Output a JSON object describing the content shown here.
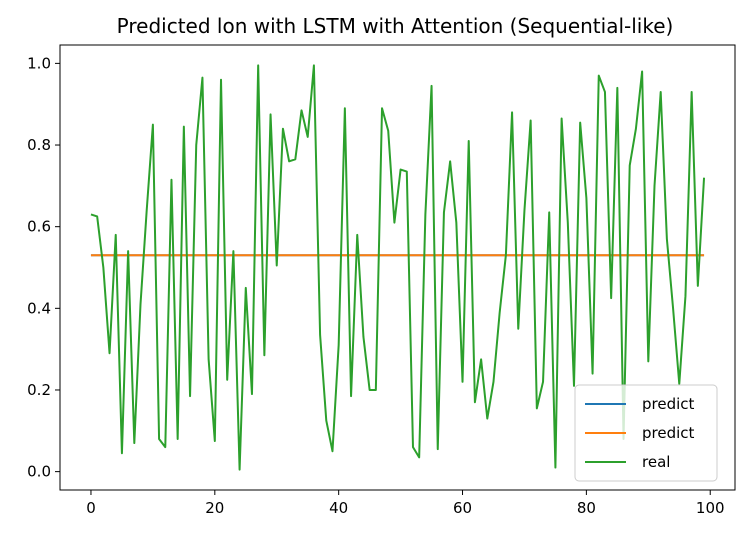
{
  "chart_data": {
    "type": "line",
    "title": "Predicted lon with LSTM with Attention (Sequential-like)",
    "xlabel": "",
    "ylabel": "",
    "xlim": [
      -5,
      104
    ],
    "ylim": [
      -0.045,
      1.045
    ],
    "xticks": [
      0,
      20,
      40,
      60,
      80,
      100
    ],
    "yticks": [
      0.0,
      0.2,
      0.4,
      0.6,
      0.8,
      1.0
    ],
    "xtick_labels": [
      "0",
      "20",
      "40",
      "60",
      "80",
      "100"
    ],
    "ytick_labels": [
      "0.0",
      "0.2",
      "0.4",
      "0.6",
      "0.8",
      "1.0"
    ],
    "grid": false,
    "legend_position": "lower-right",
    "series": [
      {
        "name": "predict",
        "color": "#1f77b4",
        "x_start": 0,
        "values": [
          0.53,
          0.53,
          0.53,
          0.53,
          0.53,
          0.53,
          0.53,
          0.53,
          0.53,
          0.53,
          0.53,
          0.53,
          0.53,
          0.53,
          0.53,
          0.53,
          0.53,
          0.53,
          0.53,
          0.53,
          0.53,
          0.53,
          0.53,
          0.53,
          0.53,
          0.53,
          0.53,
          0.53,
          0.53,
          0.53,
          0.53,
          0.53,
          0.53,
          0.53,
          0.53,
          0.53,
          0.53,
          0.53,
          0.53,
          0.53,
          0.53,
          0.53,
          0.53,
          0.53,
          0.53,
          0.53,
          0.53,
          0.53,
          0.53,
          0.53,
          0.53,
          0.53,
          0.53,
          0.53,
          0.53,
          0.53,
          0.53,
          0.53,
          0.53,
          0.53,
          0.53,
          0.53,
          0.53,
          0.53,
          0.53,
          0.53,
          0.53,
          0.53,
          0.53,
          0.53,
          0.53,
          0.53,
          0.53,
          0.53,
          0.53,
          0.53,
          0.53,
          0.53,
          0.53,
          0.53,
          0.53,
          0.53,
          0.53,
          0.53,
          0.53,
          0.53,
          0.53,
          0.53,
          0.53,
          0.53,
          0.53,
          0.53,
          0.53,
          0.53,
          0.53,
          0.53,
          0.53,
          0.53,
          0.53,
          0.53
        ]
      },
      {
        "name": "predict",
        "color": "#ff7f0e",
        "x_start": 0,
        "values": [
          0.53,
          0.53,
          0.53,
          0.53,
          0.53,
          0.53,
          0.53,
          0.53,
          0.53,
          0.53,
          0.53,
          0.53,
          0.53,
          0.53,
          0.53,
          0.53,
          0.53,
          0.53,
          0.53,
          0.53,
          0.53,
          0.53,
          0.53,
          0.53,
          0.53,
          0.53,
          0.53,
          0.53,
          0.53,
          0.53,
          0.53,
          0.53,
          0.53,
          0.53,
          0.53,
          0.53,
          0.53,
          0.53,
          0.53,
          0.53,
          0.53,
          0.53,
          0.53,
          0.53,
          0.53,
          0.53,
          0.53,
          0.53,
          0.53,
          0.53,
          0.53,
          0.53,
          0.53,
          0.53,
          0.53,
          0.53,
          0.53,
          0.53,
          0.53,
          0.53,
          0.53,
          0.53,
          0.53,
          0.53,
          0.53,
          0.53,
          0.53,
          0.53,
          0.53,
          0.53,
          0.53,
          0.53,
          0.53,
          0.53,
          0.53,
          0.53,
          0.53,
          0.53,
          0.53,
          0.53,
          0.53,
          0.53,
          0.53,
          0.53,
          0.53,
          0.53,
          0.53,
          0.53,
          0.53,
          0.53,
          0.53,
          0.53,
          0.53,
          0.53,
          0.53,
          0.53,
          0.53,
          0.53,
          0.53,
          0.53
        ]
      },
      {
        "name": "real",
        "color": "#2ca02c",
        "x_start": 0,
        "values": [
          0.63,
          0.625,
          0.5,
          0.29,
          0.58,
          0.045,
          0.54,
          0.07,
          0.41,
          0.64,
          0.85,
          0.08,
          0.06,
          0.715,
          0.08,
          0.845,
          0.185,
          0.8,
          0.965,
          0.275,
          0.075,
          0.96,
          0.225,
          0.54,
          0.005,
          0.45,
          0.19,
          0.995,
          0.285,
          0.875,
          0.505,
          0.84,
          0.76,
          0.765,
          0.885,
          0.82,
          0.995,
          0.335,
          0.125,
          0.05,
          0.31,
          0.89,
          0.185,
          0.58,
          0.33,
          0.2,
          0.2,
          0.89,
          0.835,
          0.61,
          0.74,
          0.735,
          0.06,
          0.035,
          0.63,
          0.945,
          0.055,
          0.635,
          0.76,
          0.61,
          0.22,
          0.81,
          0.17,
          0.275,
          0.13,
          0.22,
          0.39,
          0.53,
          0.88,
          0.35,
          0.64,
          0.86,
          0.155,
          0.22,
          0.635,
          0.01,
          0.865,
          0.61,
          0.21,
          0.855,
          0.67,
          0.24,
          0.97,
          0.93,
          0.425,
          0.94,
          0.08,
          0.75,
          0.84,
          0.98,
          0.27,
          0.7,
          0.93,
          0.57,
          0.4,
          0.215,
          0.43,
          0.93,
          0.455,
          0.72
        ]
      }
    ]
  }
}
